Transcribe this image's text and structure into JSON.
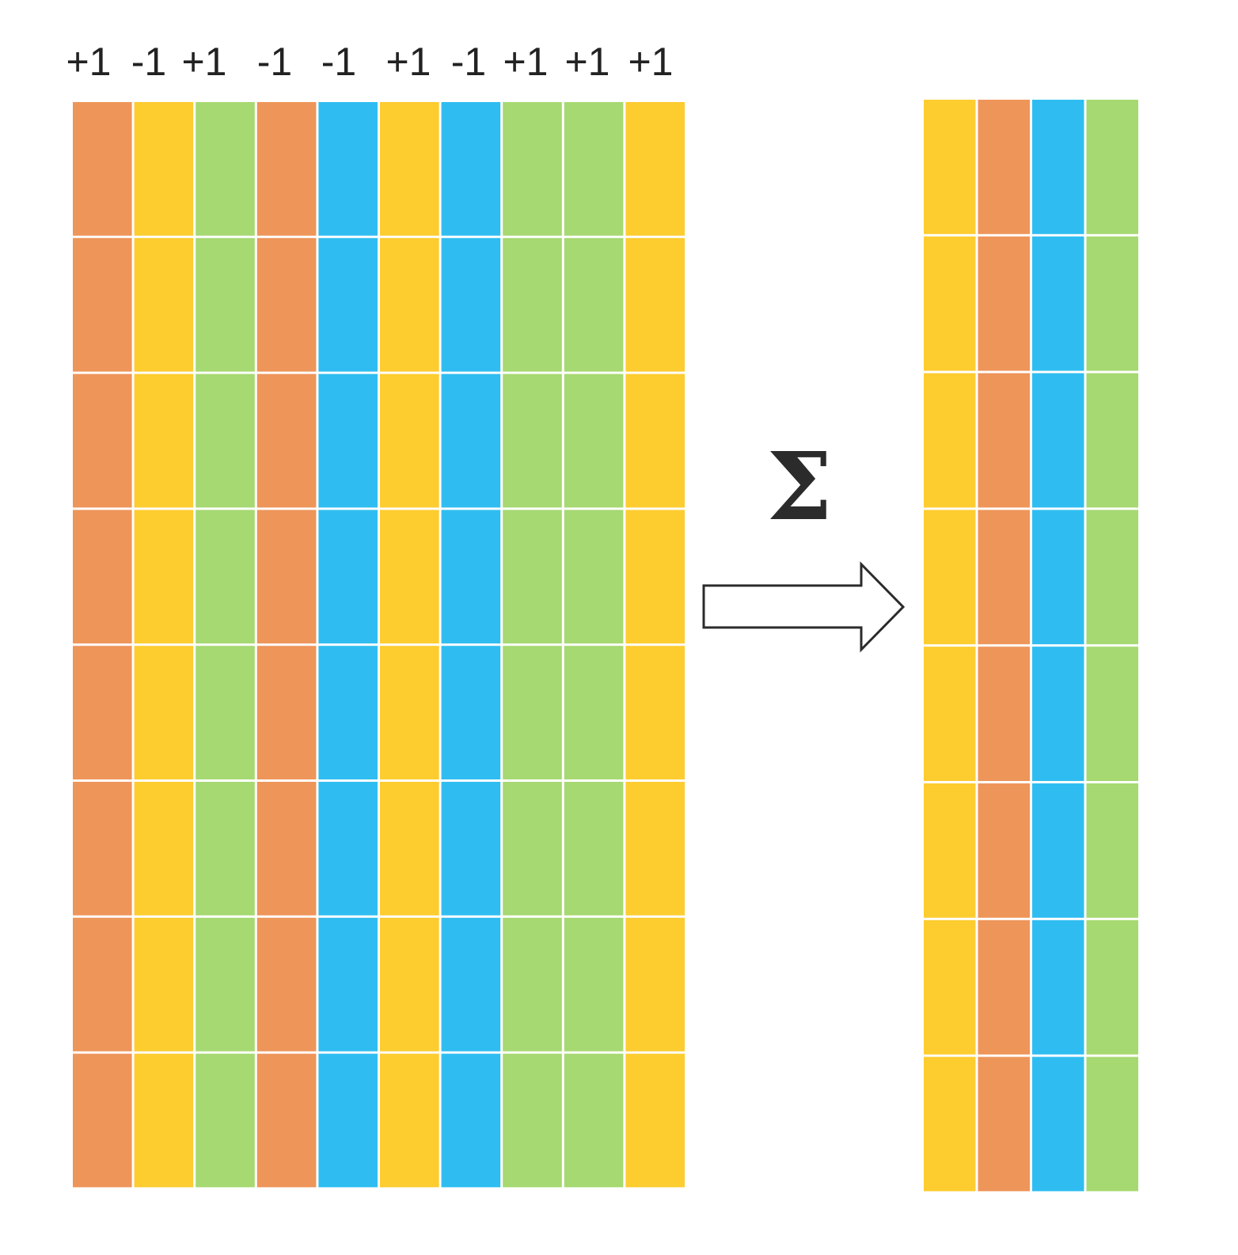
{
  "palette": {
    "orange": "#EE9559",
    "yellow": "#FDCC2F",
    "green": "#A6D971",
    "blue": "#2FBDF1"
  },
  "left_grid": {
    "row_count": 8,
    "columns": [
      {
        "sign": "+1",
        "color": "orange"
      },
      {
        "sign": "-1",
        "color": "yellow"
      },
      {
        "sign": "+1",
        "color": "green"
      },
      {
        "sign": "-1",
        "color": "orange"
      },
      {
        "sign": "-1",
        "color": "blue"
      },
      {
        "sign": "+1",
        "color": "yellow"
      },
      {
        "sign": "-1",
        "color": "blue"
      },
      {
        "sign": "+1",
        "color": "green"
      },
      {
        "sign": "+1",
        "color": "green"
      },
      {
        "sign": "+1",
        "color": "yellow"
      }
    ]
  },
  "operator": {
    "symbol": "Σ",
    "arrow_icon": "right-arrow-icon"
  },
  "right_grid": {
    "row_count": 8,
    "columns": [
      {
        "color": "yellow"
      },
      {
        "color": "orange"
      },
      {
        "color": "blue"
      },
      {
        "color": "green"
      }
    ]
  }
}
